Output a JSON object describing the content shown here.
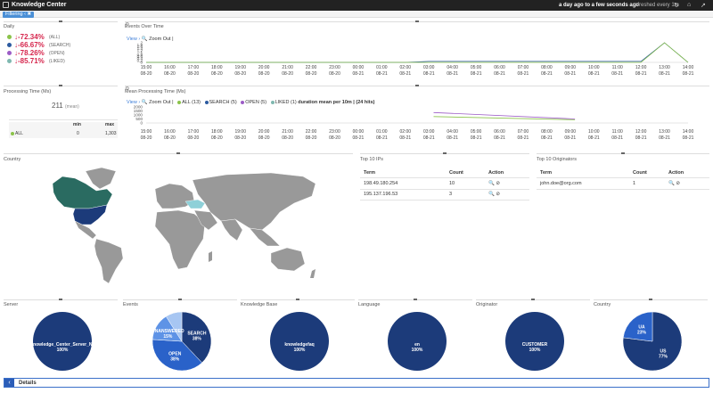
{
  "app": {
    "title": "Knowledge Center",
    "time_range": "a day ago to a few seconds ago",
    "refresh": "refreshed every 1m"
  },
  "filter": {
    "label": "Filtering"
  },
  "icons": {
    "logo": "app-logo-icon",
    "refresh": "refresh-icon",
    "home": "home-icon",
    "share": "share-icon",
    "settings": "gear-icon"
  },
  "colors": {
    "all": "#8bc34a",
    "search": "#2c5aa0",
    "open": "#9c5cc6",
    "liked": "#7fb8b0",
    "pie_main": "#1c3b7a"
  },
  "daily": {
    "title": "Daily",
    "rows": [
      {
        "value": "↓-72.34%",
        "label": "(ALL)"
      },
      {
        "value": "↓-66.67%",
        "label": "(SEARCH)"
      },
      {
        "value": "↓-78.26%",
        "label": "(OPEN)"
      },
      {
        "value": "↓-85.71%",
        "label": "(LIKED)"
      }
    ]
  },
  "processing": {
    "title": "Processing Time (Ms)",
    "mean_value": "211",
    "mean_label": "(mean)",
    "col_min": "min",
    "col_max": "max",
    "row": {
      "label": "ALL",
      "min": "0",
      "max": "1,303"
    }
  },
  "events_over_time": {
    "title": "Events Over Time",
    "view": "View",
    "zoom": "Zoom Out |"
  },
  "mean_processing": {
    "title": "Mean Processing Time (Ms)",
    "view": "View",
    "zoom": "Zoom Out |",
    "legend": [
      "ALL (13)",
      "SEARCH (5)",
      "OPEN (5)",
      "LIKED (1)"
    ],
    "duration": "duration mean per 10m | (24 hits)"
  },
  "time_axis": {
    "hours": [
      "15:00",
      "16:00",
      "17:00",
      "18:00",
      "19:00",
      "20:00",
      "21:00",
      "22:00",
      "23:00",
      "00:00",
      "01:00",
      "02:00",
      "03:00",
      "04:00",
      "05:00",
      "06:00",
      "07:00",
      "08:00",
      "09:00",
      "10:00",
      "11:00",
      "12:00",
      "13:00",
      "14:00"
    ],
    "dates": [
      "08-20",
      "08-20",
      "08-20",
      "08-20",
      "08-20",
      "08-20",
      "08-20",
      "08-20",
      "08-20",
      "08-21",
      "08-21",
      "08-21",
      "08-21",
      "08-21",
      "08-21",
      "08-21",
      "08-21",
      "08-21",
      "08-21",
      "08-21",
      "08-21",
      "08-21",
      "08-21",
      "08-21"
    ]
  },
  "chart_data": [
    {
      "type": "line",
      "name": "events-over-time",
      "x": [
        "15:00",
        "16:00",
        "17:00",
        "18:00",
        "19:00",
        "20:00",
        "21:00",
        "22:00",
        "23:00",
        "00:00",
        "01:00",
        "02:00",
        "03:00",
        "04:00",
        "05:00",
        "06:00",
        "07:00",
        "08:00",
        "09:00",
        "10:00",
        "11:00",
        "12:00",
        "13:00",
        "14:00"
      ],
      "y_ticks": [
        "2",
        "1.8",
        "1.6",
        "1.4",
        "1.2",
        "1",
        "0.8",
        "0.6",
        "0.4",
        "0.2",
        "0"
      ],
      "ylim": [
        0,
        2
      ],
      "series": [
        {
          "name": "SEARCH",
          "values": [
            0,
            0,
            0,
            0,
            0,
            0,
            0,
            0,
            0,
            0,
            0,
            0,
            0.1,
            0.1,
            0.1,
            0.1,
            0.1,
            0.1,
            0.1,
            0.1,
            0.1,
            0.1,
            2,
            0
          ]
        },
        {
          "name": "ALL",
          "values": [
            0,
            0,
            0,
            0,
            0,
            0,
            0,
            0,
            0,
            0,
            0,
            0,
            0,
            0,
            0,
            0,
            0,
            0,
            0,
            0,
            0,
            0,
            2,
            0
          ]
        }
      ]
    },
    {
      "type": "line",
      "name": "mean-processing-time",
      "y_ticks": [
        "2000",
        "1500",
        "1000",
        "500",
        "0"
      ],
      "ylim": [
        0,
        2000
      ],
      "series": [
        {
          "name": "OPEN",
          "points": [
            [
              12.2,
              1300
            ],
            [
              18.2,
              500
            ]
          ]
        },
        {
          "name": "ALL",
          "points": [
            [
              12.2,
              800
            ],
            [
              18.2,
              400
            ]
          ]
        }
      ]
    },
    {
      "type": "pie",
      "name": "server",
      "title": "Server",
      "slices": [
        {
          "label": "Knowledge_Center_Server_No",
          "value": 100,
          "text": "100%"
        }
      ]
    },
    {
      "type": "pie",
      "name": "events",
      "title": "Events",
      "slices": [
        {
          "label": "SEARCH",
          "value": 38,
          "text": "38%"
        },
        {
          "label": "OPEN",
          "value": 38,
          "text": "38%"
        },
        {
          "label": "UNANSWERED",
          "value": 15,
          "text": "15%"
        },
        {
          "label": "",
          "value": 9,
          "text": ""
        }
      ]
    },
    {
      "type": "pie",
      "name": "knowledge-base",
      "title": "Knowledge Base",
      "slices": [
        {
          "label": "knowledgefaq",
          "value": 100,
          "text": "100%"
        }
      ]
    },
    {
      "type": "pie",
      "name": "language",
      "title": "Language",
      "slices": [
        {
          "label": "en",
          "value": 100,
          "text": "100%"
        }
      ]
    },
    {
      "type": "pie",
      "name": "originator",
      "title": "Originator",
      "slices": [
        {
          "label": "CUSTOMER",
          "value": 100,
          "text": "100%"
        }
      ]
    },
    {
      "type": "pie",
      "name": "country",
      "title": "Country",
      "slices": [
        {
          "label": "US",
          "value": 77,
          "text": "77%"
        },
        {
          "label": "UA",
          "value": 23,
          "text": "23%"
        }
      ]
    }
  ],
  "country": {
    "title": "Country"
  },
  "top_ips": {
    "title": "Top 10 IPs",
    "headers": [
      "Term",
      "Count",
      "Action"
    ],
    "rows": [
      {
        "term": "198.49.180.254",
        "count": "10"
      },
      {
        "term": "195.137.196.53",
        "count": "3"
      }
    ]
  },
  "top_originators": {
    "title": "Top 10 Originators",
    "headers": [
      "Term",
      "Count",
      "Action"
    ],
    "rows": [
      {
        "term": "john.doe@org.com",
        "count": "1"
      }
    ]
  },
  "details": {
    "label": "Details"
  }
}
